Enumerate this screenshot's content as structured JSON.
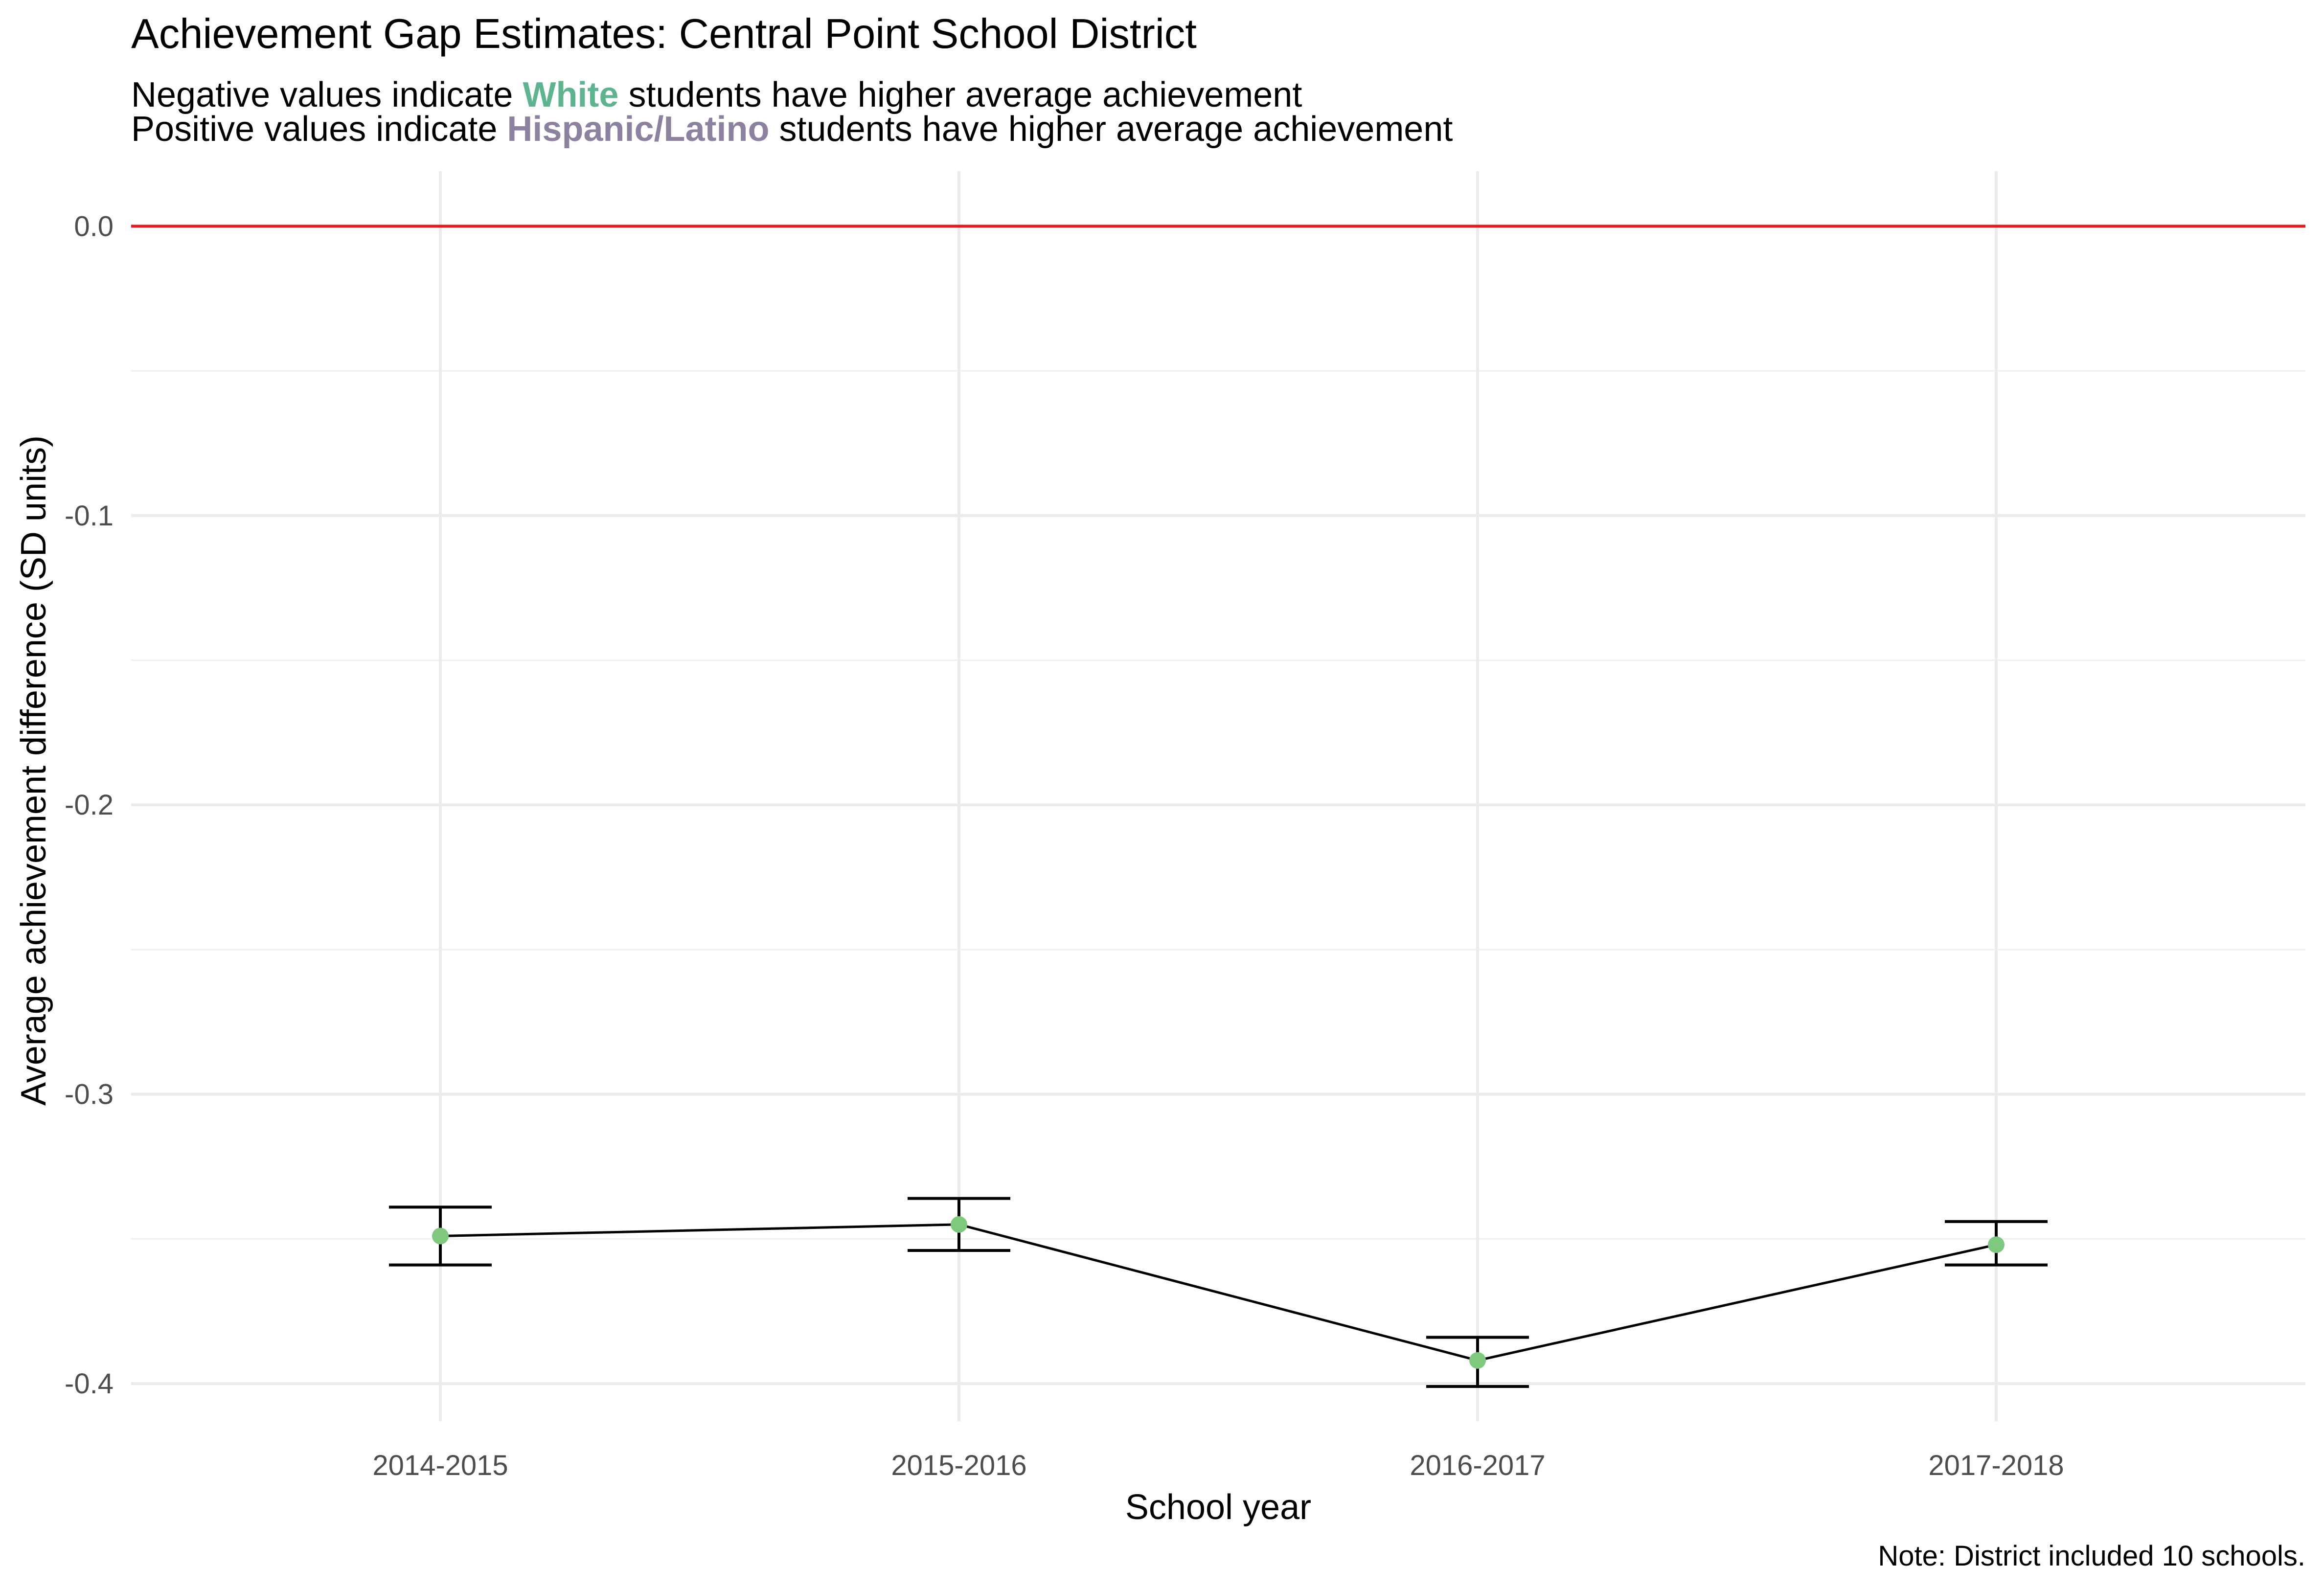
{
  "chart_data": {
    "type": "line",
    "title": "Achievement Gap Estimates: Central Point School District",
    "subtitle_lines": [
      {
        "before": "Negative values indicate ",
        "highlight": "White",
        "after": " students have higher average achievement",
        "highlight_color": "#5DB48E"
      },
      {
        "before": "Positive values indicate ",
        "highlight": "Hispanic/Latino",
        "after": " students have higher average achievement",
        "highlight_color": "#8C82A0"
      }
    ],
    "xlabel": "School year",
    "ylabel": "Average achievement difference (SD units)",
    "caption": "Note: District included 10 schools.",
    "categories": [
      "2014-2015",
      "2015-2016",
      "2016-2017",
      "2017-2018"
    ],
    "y_ticks": [
      0.0,
      -0.1,
      -0.2,
      -0.3,
      -0.4
    ],
    "y_tick_labels": [
      "0.0",
      "-0.1",
      "-0.2",
      "-0.3",
      "-0.4"
    ],
    "ylim": [
      -0.413,
      0.019
    ],
    "reference_line": {
      "y": 0.0,
      "color": "#E41A1C"
    },
    "series": [
      {
        "values": [
          -0.349,
          -0.345,
          -0.392,
          -0.352
        ],
        "lower": [
          -0.359,
          -0.354,
          -0.401,
          -0.359
        ],
        "upper": [
          -0.339,
          -0.336,
          -0.384,
          -0.344
        ],
        "point_color": "#7FC97F",
        "line_color": "#000000"
      }
    ],
    "grid": true,
    "legend": "none"
  }
}
